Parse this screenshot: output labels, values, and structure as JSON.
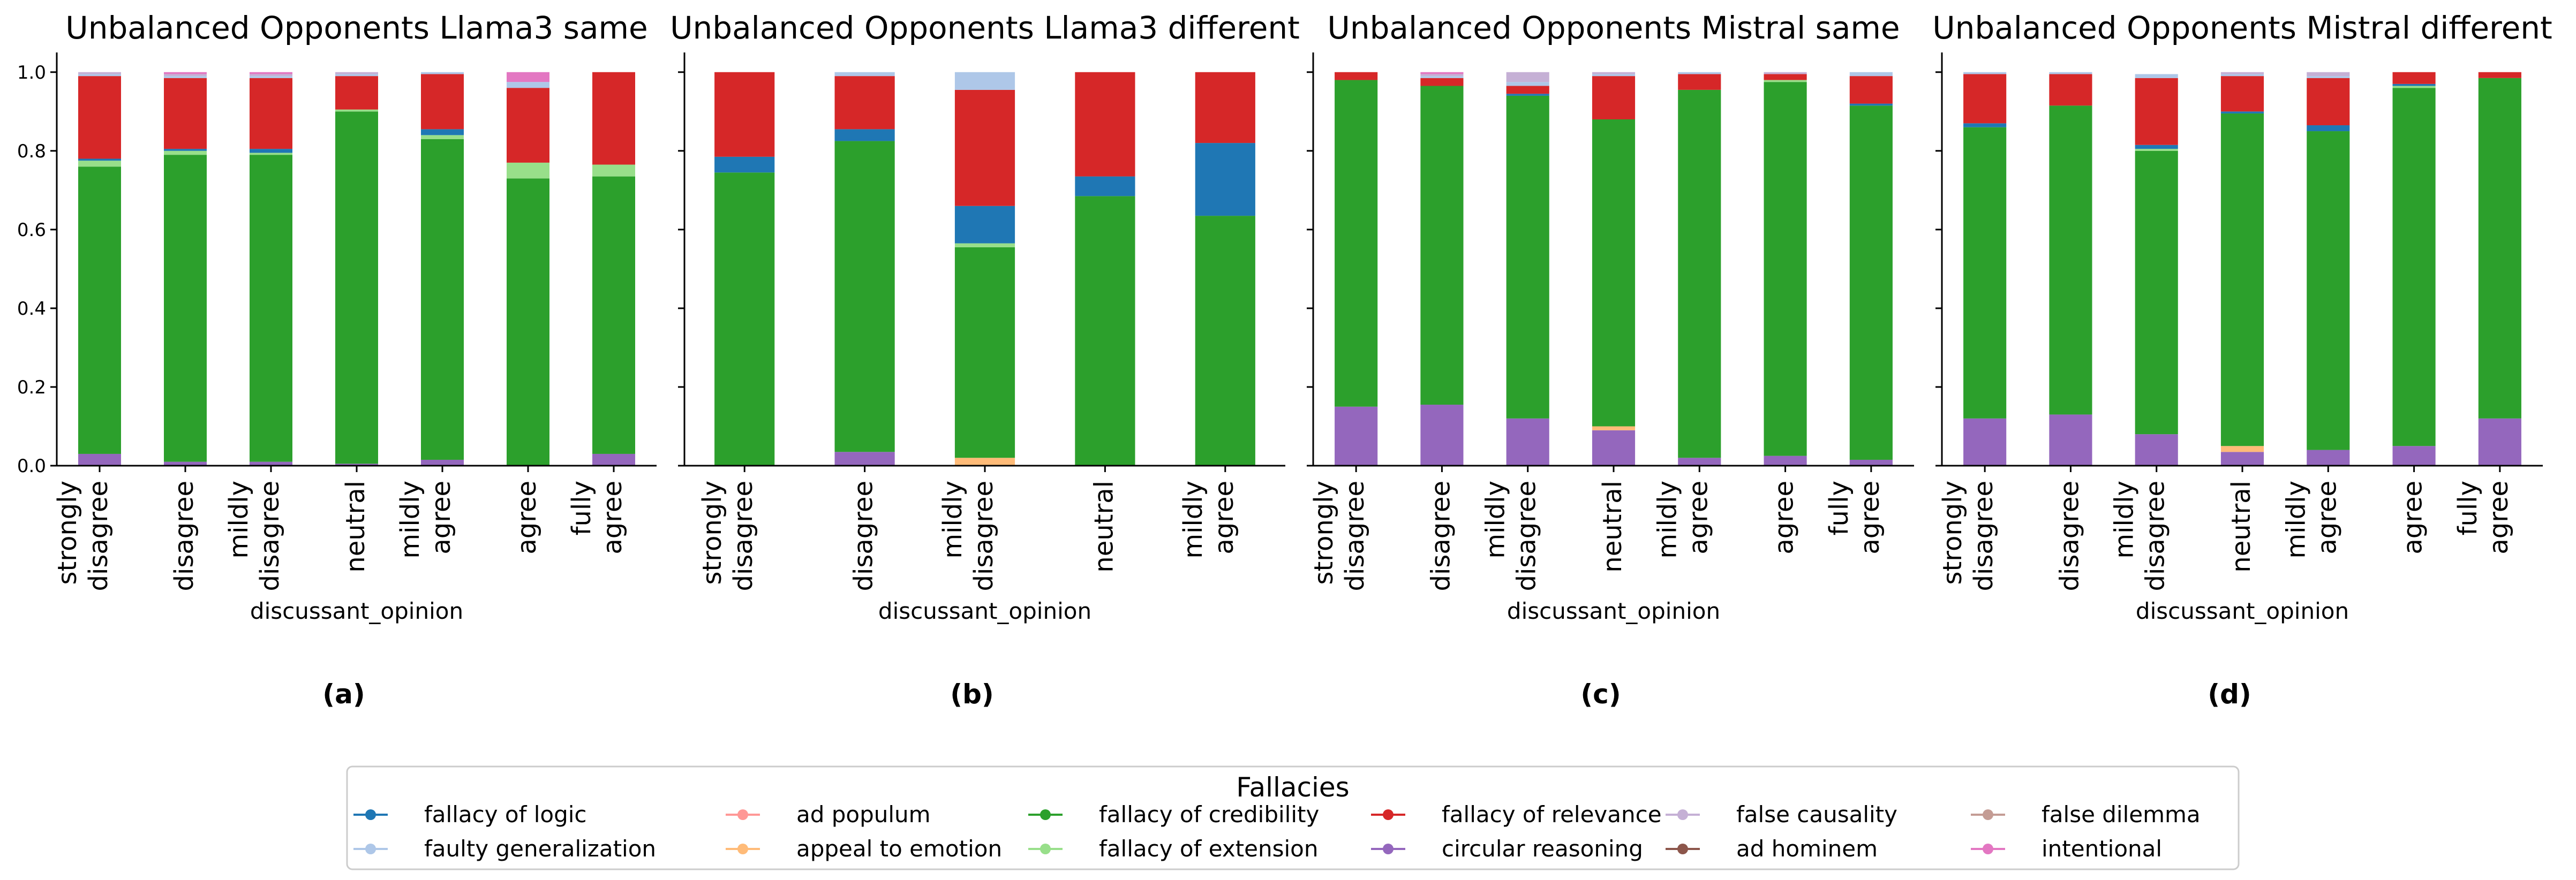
{
  "chart_data": {
    "type": "bar",
    "stacked": true,
    "legend": {
      "title": "Fallacies",
      "placement": "bottom-center",
      "entries": [
        {
          "name": "fallacy of logic",
          "color": "#1f77b4"
        },
        {
          "name": "faulty generalization",
          "color": "#aec7e8"
        },
        {
          "name": "ad populum",
          "color": "#ff9896"
        },
        {
          "name": "appeal to emotion",
          "color": "#ffbb78"
        },
        {
          "name": "fallacy of credibility",
          "color": "#2ca02c"
        },
        {
          "name": "fallacy of extension",
          "color": "#98df8a"
        },
        {
          "name": "fallacy of relevance",
          "color": "#d62728"
        },
        {
          "name": "circular reasoning",
          "color": "#9467bd"
        },
        {
          "name": "false causality",
          "color": "#c5b0d5"
        },
        {
          "name": "ad hominem",
          "color": "#8c564b"
        },
        {
          "name": "false dilemma",
          "color": "#c49c94"
        },
        {
          "name": "intentional",
          "color": "#e377c2"
        }
      ]
    },
    "stack_order": [
      "circular reasoning",
      "appeal to emotion",
      "fallacy of credibility",
      "fallacy of extension",
      "fallacy of logic",
      "fallacy of relevance",
      "faulty generalization",
      "false causality",
      "intentional"
    ],
    "panels": [
      {
        "title": "Unbalanced Opponents Llama3 same",
        "sublabel": "(a)",
        "xlabel": "discussant_opinion",
        "ylim": [
          0,
          1.05
        ],
        "yticks": [
          "0.0",
          "0.2",
          "0.4",
          "0.6",
          "0.8",
          "1.0"
        ],
        "categories": [
          [
            "strongly",
            "disagree"
          ],
          [
            "disagree"
          ],
          [
            "mildly",
            "disagree"
          ],
          [
            "neutral"
          ],
          [
            "mildly",
            "agree"
          ],
          [
            "agree"
          ],
          [
            "fully",
            "agree"
          ]
        ],
        "series": [
          {
            "name": "circular reasoning",
            "values": [
              0.03,
              0.01,
              0.01,
              0.005,
              0.015,
              0.0,
              0.03
            ]
          },
          {
            "name": "appeal to emotion",
            "values": [
              0,
              0,
              0,
              0,
              0,
              0,
              0
            ]
          },
          {
            "name": "fallacy of credibility",
            "values": [
              0.73,
              0.78,
              0.78,
              0.895,
              0.815,
              0.73,
              0.705
            ]
          },
          {
            "name": "fallacy of extension",
            "values": [
              0.015,
              0.01,
              0.005,
              0.005,
              0.01,
              0.04,
              0.03
            ]
          },
          {
            "name": "fallacy of logic",
            "values": [
              0.005,
              0.005,
              0.01,
              0.0,
              0.015,
              0.0,
              0.0
            ]
          },
          {
            "name": "fallacy of relevance",
            "values": [
              0.21,
              0.18,
              0.18,
              0.085,
              0.14,
              0.19,
              0.235
            ]
          },
          {
            "name": "faulty generalization",
            "values": [
              0.005,
              0.005,
              0.005,
              0.005,
              0.005,
              0.015,
              0.0
            ]
          },
          {
            "name": "false causality",
            "values": [
              0.005,
              0.005,
              0.005,
              0.005,
              0.0,
              0.0,
              0.0
            ]
          },
          {
            "name": "intentional",
            "values": [
              0.0,
              0.005,
              0.005,
              0.0,
              0.0,
              0.025,
              0.0
            ]
          }
        ]
      },
      {
        "title": "Unbalanced Opponents Llama3 different",
        "sublabel": "(b)",
        "xlabel": "discussant_opinion",
        "ylim": [
          0,
          1.05
        ],
        "yticks": [
          "0.0",
          "0.2",
          "0.4",
          "0.6",
          "0.8",
          "1.0"
        ],
        "categories": [
          [
            "strongly",
            "disagree"
          ],
          [
            "disagree"
          ],
          [
            "mildly",
            "disagree"
          ],
          [
            "neutral"
          ],
          [
            "mildly",
            "agree"
          ]
        ],
        "series": [
          {
            "name": "circular reasoning",
            "values": [
              0.0,
              0.035,
              0.0,
              0.0,
              0.0
            ]
          },
          {
            "name": "appeal to emotion",
            "values": [
              0.0,
              0.0,
              0.02,
              0.0,
              0.0
            ]
          },
          {
            "name": "fallacy of credibility",
            "values": [
              0.745,
              0.79,
              0.535,
              0.685,
              0.635
            ]
          },
          {
            "name": "fallacy of extension",
            "values": [
              0.0,
              0.0,
              0.01,
              0.0,
              0.0
            ]
          },
          {
            "name": "fallacy of logic",
            "values": [
              0.04,
              0.03,
              0.095,
              0.05,
              0.185
            ]
          },
          {
            "name": "fallacy of relevance",
            "values": [
              0.215,
              0.135,
              0.295,
              0.265,
              0.18
            ]
          },
          {
            "name": "faulty generalization",
            "values": [
              0.0,
              0.01,
              0.045,
              0.0,
              0.0
            ]
          },
          {
            "name": "false causality",
            "values": [
              0,
              0,
              0,
              0,
              0
            ]
          },
          {
            "name": "intentional",
            "values": [
              0,
              0,
              0,
              0,
              0
            ]
          }
        ]
      },
      {
        "title": "Unbalanced Opponents Mistral same",
        "sublabel": "(c)",
        "xlabel": "discussant_opinion",
        "ylim": [
          0,
          1.05
        ],
        "yticks": [
          "0.0",
          "0.2",
          "0.4",
          "0.6",
          "0.8",
          "1.0"
        ],
        "categories": [
          [
            "strongly",
            "disagree"
          ],
          [
            "disagree"
          ],
          [
            "mildly",
            "disagree"
          ],
          [
            "neutral"
          ],
          [
            "mildly",
            "agree"
          ],
          [
            "agree"
          ],
          [
            "fully",
            "agree"
          ]
        ],
        "series": [
          {
            "name": "circular reasoning",
            "values": [
              0.15,
              0.155,
              0.12,
              0.09,
              0.02,
              0.025,
              0.015
            ]
          },
          {
            "name": "appeal to emotion",
            "values": [
              0.0,
              0.0,
              0.0,
              0.01,
              0.0,
              0.0,
              0.0
            ]
          },
          {
            "name": "fallacy of credibility",
            "values": [
              0.83,
              0.81,
              0.82,
              0.78,
              0.935,
              0.95,
              0.9
            ]
          },
          {
            "name": "fallacy of extension",
            "values": [
              0.0,
              0.0,
              0.0,
              0.0,
              0.0,
              0.005,
              0.0
            ]
          },
          {
            "name": "fallacy of logic",
            "values": [
              0.0,
              0.0,
              0.005,
              0.0,
              0.0,
              0.0,
              0.005
            ]
          },
          {
            "name": "fallacy of relevance",
            "values": [
              0.02,
              0.02,
              0.02,
              0.11,
              0.04,
              0.015,
              0.07
            ]
          },
          {
            "name": "faulty generalization",
            "values": [
              0.0,
              0.005,
              0.01,
              0.005,
              0.005,
              0.0,
              0.01
            ]
          },
          {
            "name": "false causality",
            "values": [
              0.0,
              0.005,
              0.025,
              0.005,
              0.0,
              0.005,
              0.0
            ]
          },
          {
            "name": "intentional",
            "values": [
              0.0,
              0.005,
              0.0,
              0.0,
              0.0,
              0.0,
              0.0
            ]
          }
        ]
      },
      {
        "title": "Unbalanced Opponents Mistral different",
        "sublabel": "(d)",
        "xlabel": "discussant_opinion",
        "ylim": [
          0,
          1.05
        ],
        "yticks": [
          "0.0",
          "0.2",
          "0.4",
          "0.6",
          "0.8",
          "1.0"
        ],
        "categories": [
          [
            "strongly",
            "disagree"
          ],
          [
            "disagree"
          ],
          [
            "mildly",
            "disagree"
          ],
          [
            "neutral"
          ],
          [
            "mildly",
            "agree"
          ],
          [
            "agree"
          ],
          [
            "fully",
            "agree"
          ]
        ],
        "series": [
          {
            "name": "circular reasoning",
            "values": [
              0.12,
              0.13,
              0.08,
              0.035,
              0.04,
              0.05,
              0.12
            ]
          },
          {
            "name": "appeal to emotion",
            "values": [
              0.0,
              0.0,
              0.0,
              0.015,
              0.0,
              0.0,
              0.0
            ]
          },
          {
            "name": "fallacy of credibility",
            "values": [
              0.74,
              0.785,
              0.72,
              0.845,
              0.81,
              0.91,
              0.865
            ]
          },
          {
            "name": "fallacy of extension",
            "values": [
              0.0,
              0.0,
              0.005,
              0.0,
              0.0,
              0.005,
              0.0
            ]
          },
          {
            "name": "fallacy of logic",
            "values": [
              0.01,
              0.0,
              0.01,
              0.005,
              0.015,
              0.005,
              0.0
            ]
          },
          {
            "name": "fallacy of relevance",
            "values": [
              0.125,
              0.08,
              0.17,
              0.09,
              0.12,
              0.03,
              0.015
            ]
          },
          {
            "name": "faulty generalization",
            "values": [
              0.005,
              0.005,
              0.01,
              0.005,
              0.005,
              0.0,
              0.0
            ]
          },
          {
            "name": "false causality",
            "values": [
              0.0,
              0.0,
              0.0,
              0.005,
              0.01,
              0.0,
              0.0
            ]
          },
          {
            "name": "intentional",
            "values": [
              0,
              0,
              0,
              0,
              0,
              0,
              0
            ]
          }
        ]
      }
    ]
  }
}
